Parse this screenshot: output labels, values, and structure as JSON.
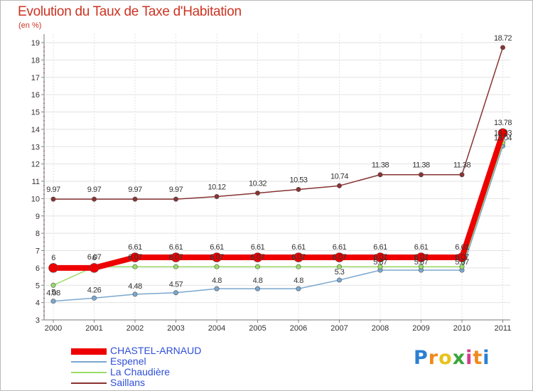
{
  "chart_data": {
    "type": "line",
    "title": "Evolution du Taux de Taxe d'Habitation",
    "unit": "(en %)",
    "x": [
      "2000",
      "2001",
      "2002",
      "2003",
      "2004",
      "2005",
      "2006",
      "2007",
      "2008",
      "2009",
      "2010",
      "2011"
    ],
    "ylim": [
      3,
      19
    ],
    "yticks": [
      3,
      4,
      5,
      6,
      7,
      8,
      9,
      10,
      11,
      12,
      13,
      14,
      15,
      16,
      17,
      18,
      19
    ],
    "grid": true,
    "legend_position": "bottom-left",
    "series": [
      {
        "name": "CHASTEL-ARNAUD",
        "color": "#ee0000",
        "values": [
          6,
          6,
          6.61,
          6.61,
          6.61,
          6.61,
          6.61,
          6.61,
          6.61,
          6.61,
          6.61,
          13.78
        ],
        "labels": [
          "6",
          "6",
          "6.61",
          "6.61",
          "6.61",
          "6.61",
          "6.61",
          "6.61",
          "6.61",
          "6.61",
          "6.61",
          "13.78"
        ]
      },
      {
        "name": "Espenel",
        "color": "#7aa7cf",
        "values": [
          4.08,
          4.26,
          4.48,
          4.57,
          4.8,
          4.8,
          4.8,
          5.3,
          5.87,
          5.87,
          5.87,
          13.04
        ],
        "labels": [
          "4.08",
          "4.26",
          "4.48",
          "4.57",
          "4.8",
          "4.8",
          "4.8",
          "5.3",
          "5.87",
          "5.87",
          "5.87",
          "13.04"
        ]
      },
      {
        "name": "La Chaudière",
        "color": "#99dd66",
        "values": [
          5,
          6.07,
          6.07,
          6.07,
          6.07,
          6.07,
          6.07,
          6.07,
          6.07,
          6.07,
          6.07,
          13.23
        ],
        "labels": [
          "5",
          "6.07",
          "6.07",
          "6.07",
          "6.07",
          "6.07",
          "6.07",
          "6.07",
          "6.07",
          "6.07",
          "6.07",
          "13.23"
        ]
      },
      {
        "name": "Saillans",
        "color": "#883333",
        "values": [
          9.97,
          9.97,
          9.97,
          9.97,
          10.12,
          10.32,
          10.53,
          10.74,
          11.38,
          11.38,
          11.38,
          18.72
        ],
        "labels": [
          "9.97",
          "9.97",
          "9.97",
          "9.97",
          "10.12",
          "10.32",
          "10.53",
          "10.74",
          "11.38",
          "11.38",
          "11.38",
          "18.72"
        ]
      }
    ]
  },
  "logo": {
    "text": "Proxiti",
    "colors": [
      "#2b7fd1",
      "#f08a1c",
      "#e8c21a",
      "#3aa53a",
      "#d93a8c",
      "#f08a1c",
      "#2b7fd1"
    ]
  }
}
